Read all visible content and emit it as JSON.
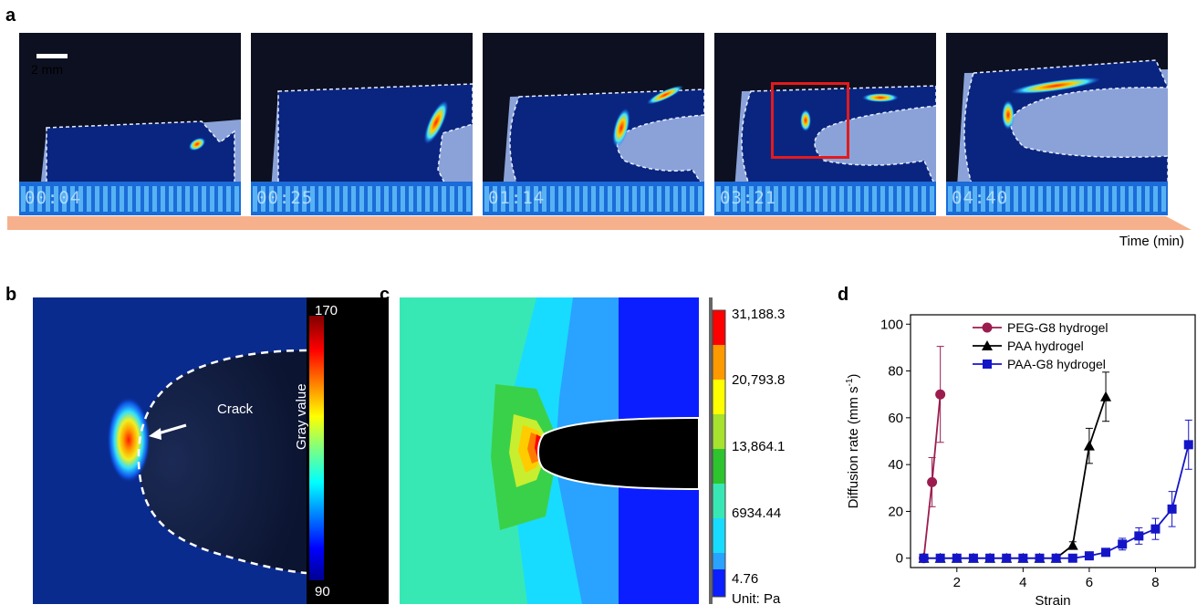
{
  "panels": {
    "a": {
      "letter": "a",
      "scale_label": "2 mm",
      "timestamps": [
        "00:04",
        "00:25",
        "01:14",
        "03:21",
        "04:40"
      ],
      "time_axis_label": "Time (min)",
      "highlight_color": "#e31a1c",
      "arrow_color": "#f7b08c"
    },
    "b": {
      "letter": "b",
      "annotation": "Crack",
      "colorbar_label": "Gray value",
      "colorbar_max": "170",
      "colorbar_min": "90"
    },
    "c": {
      "letter": "c",
      "levels": [
        "31,188.3",
        "20,793.8",
        "13,864.1",
        "6934.44",
        "4.76"
      ],
      "unit": "Unit: Pa"
    },
    "d": {
      "letter": "d"
    }
  },
  "chart_data": {
    "type": "line",
    "xlabel": "Strain",
    "ylabel_main": "Diffusion rate (mm s",
    "ylabel_sup": "-1",
    "ylabel_close": ")",
    "xlim": [
      0.6,
      9.2
    ],
    "ylim": [
      -4,
      104
    ],
    "xticks": [
      2,
      4,
      6,
      8
    ],
    "yticks": [
      0,
      20,
      40,
      60,
      80,
      100
    ],
    "legend_position": "top",
    "series": [
      {
        "name": "PEG-G8 hydrogel",
        "color": "#9b1d4f",
        "marker": "circle",
        "points": [
          {
            "x": 1.0,
            "y": 0,
            "err": 0
          },
          {
            "x": 1.25,
            "y": 32.5,
            "err": 10.5
          },
          {
            "x": 1.5,
            "y": 70,
            "err": 20.5
          }
        ]
      },
      {
        "name": "PAA hydrogel",
        "color": "#000000",
        "marker": "triangle",
        "points": [
          {
            "x": 1.0,
            "y": 0,
            "err": 0
          },
          {
            "x": 1.5,
            "y": 0,
            "err": 0
          },
          {
            "x": 2.0,
            "y": 0,
            "err": 0
          },
          {
            "x": 2.5,
            "y": 0,
            "err": 0
          },
          {
            "x": 3.0,
            "y": 0,
            "err": 0
          },
          {
            "x": 3.5,
            "y": 0,
            "err": 0
          },
          {
            "x": 4.0,
            "y": 0,
            "err": 0
          },
          {
            "x": 4.5,
            "y": 0,
            "err": 0
          },
          {
            "x": 5.0,
            "y": 0,
            "err": 0
          },
          {
            "x": 5.5,
            "y": 5.5,
            "err": 1.5
          },
          {
            "x": 6.0,
            "y": 48,
            "err": 7.5
          },
          {
            "x": 6.5,
            "y": 69,
            "err": 10.5
          }
        ]
      },
      {
        "name": "PAA-G8 hydrogel",
        "color": "#1515c8",
        "marker": "square",
        "points": [
          {
            "x": 1.0,
            "y": 0,
            "err": 0
          },
          {
            "x": 1.5,
            "y": 0,
            "err": 0
          },
          {
            "x": 2.0,
            "y": 0,
            "err": 0
          },
          {
            "x": 2.5,
            "y": 0,
            "err": 0
          },
          {
            "x": 3.0,
            "y": 0,
            "err": 0
          },
          {
            "x": 3.5,
            "y": 0,
            "err": 0
          },
          {
            "x": 4.0,
            "y": 0,
            "err": 0
          },
          {
            "x": 4.5,
            "y": 0,
            "err": 0
          },
          {
            "x": 5.0,
            "y": 0,
            "err": 0
          },
          {
            "x": 5.5,
            "y": 0,
            "err": 0
          },
          {
            "x": 6.0,
            "y": 1,
            "err": 0.5
          },
          {
            "x": 6.5,
            "y": 2.5,
            "err": 1
          },
          {
            "x": 7.0,
            "y": 6,
            "err": 2.5
          },
          {
            "x": 7.5,
            "y": 9.5,
            "err": 3.5
          },
          {
            "x": 8.0,
            "y": 12.5,
            "err": 4.5
          },
          {
            "x": 8.5,
            "y": 21,
            "err": 7.5
          },
          {
            "x": 9.0,
            "y": 48.5,
            "err": 10.5
          }
        ]
      }
    ]
  }
}
